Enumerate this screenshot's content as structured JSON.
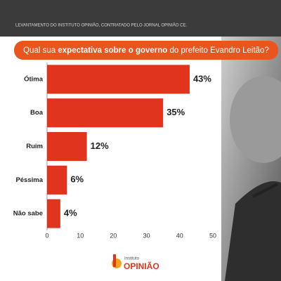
{
  "header": {
    "text": "LEVANTAMENTO DO INSTITUTO OPINIÃO, CONTRATADO PELO JORNAL OPINIÃO CE."
  },
  "logo": {
    "small": "Instituto",
    "big": "OPINIÃO"
  },
  "chart_data": {
    "type": "bar",
    "orientation": "horizontal",
    "title": [
      "Qual sua ",
      "expectativa sobre o governo",
      " do prefeito Evandro Leitão?"
    ],
    "categories": [
      "Ótima",
      "Boa",
      "Ruim",
      "Péssima",
      "Não sabe"
    ],
    "values": [
      43,
      35,
      12,
      6,
      4
    ],
    "value_labels": [
      "43%",
      "35%",
      "12%",
      "6%",
      "4%"
    ],
    "color": "#e0351c",
    "xlim": [
      0,
      50
    ],
    "xticks": [
      0,
      10,
      20,
      30,
      40,
      50
    ],
    "grid": false
  }
}
